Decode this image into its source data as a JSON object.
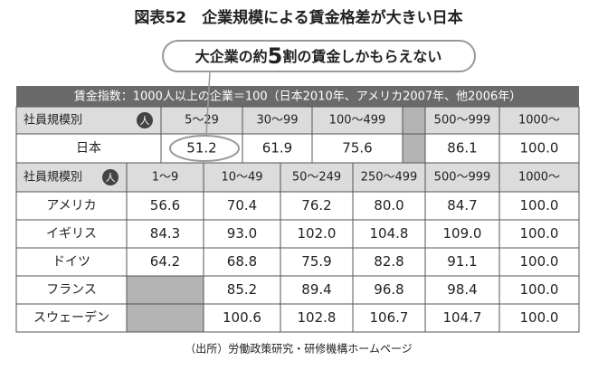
{
  "header": {
    "title": "図表52　企業規模による賃金格差が大きい日本",
    "callout": [
      "大企業の約",
      "5",
      "割の賃金しかもらえない"
    ]
  },
  "note": "賃金指数：1000人以上の企業＝100（日本2010年、アメリカ2007年、他2006年）",
  "japan_table": {
    "label_header": "社員規模別",
    "unit": "人",
    "columns": [
      "5〜29",
      "30〜99",
      "100〜499",
      null,
      "500〜999",
      "1000〜"
    ],
    "rows": [
      {
        "label": "日本",
        "values": [
          "51.2",
          "61.9",
          "75.6",
          null,
          "86.1",
          "100.0"
        ]
      }
    ]
  },
  "countries_table": {
    "label_header": "社員規模別",
    "unit": "人",
    "columns": [
      "1〜9",
      "10〜49",
      "50〜249",
      "250〜499",
      "500〜999",
      "1000〜"
    ],
    "rows": [
      {
        "label": "アメリカ",
        "values": [
          "56.6",
          "70.4",
          "76.2",
          "80.0",
          "84.7",
          "100.0"
        ]
      },
      {
        "label": "イギリス",
        "values": [
          "84.3",
          "93.0",
          "102.0",
          "104.8",
          "109.0",
          "100.0"
        ]
      },
      {
        "label": "ドイツ",
        "values": [
          "64.2",
          "68.8",
          "75.9",
          "82.8",
          "91.1",
          "100.0"
        ]
      },
      {
        "label": "フランス",
        "values": [
          null,
          "85.2",
          "89.4",
          "96.8",
          "98.4",
          "100.0"
        ]
      },
      {
        "label": "スウェーデン",
        "values": [
          null,
          "100.6",
          "102.8",
          "106.7",
          "104.7",
          "100.0"
        ]
      }
    ]
  },
  "source": "（出所）労働政策研究・研修機構ホームページ"
}
